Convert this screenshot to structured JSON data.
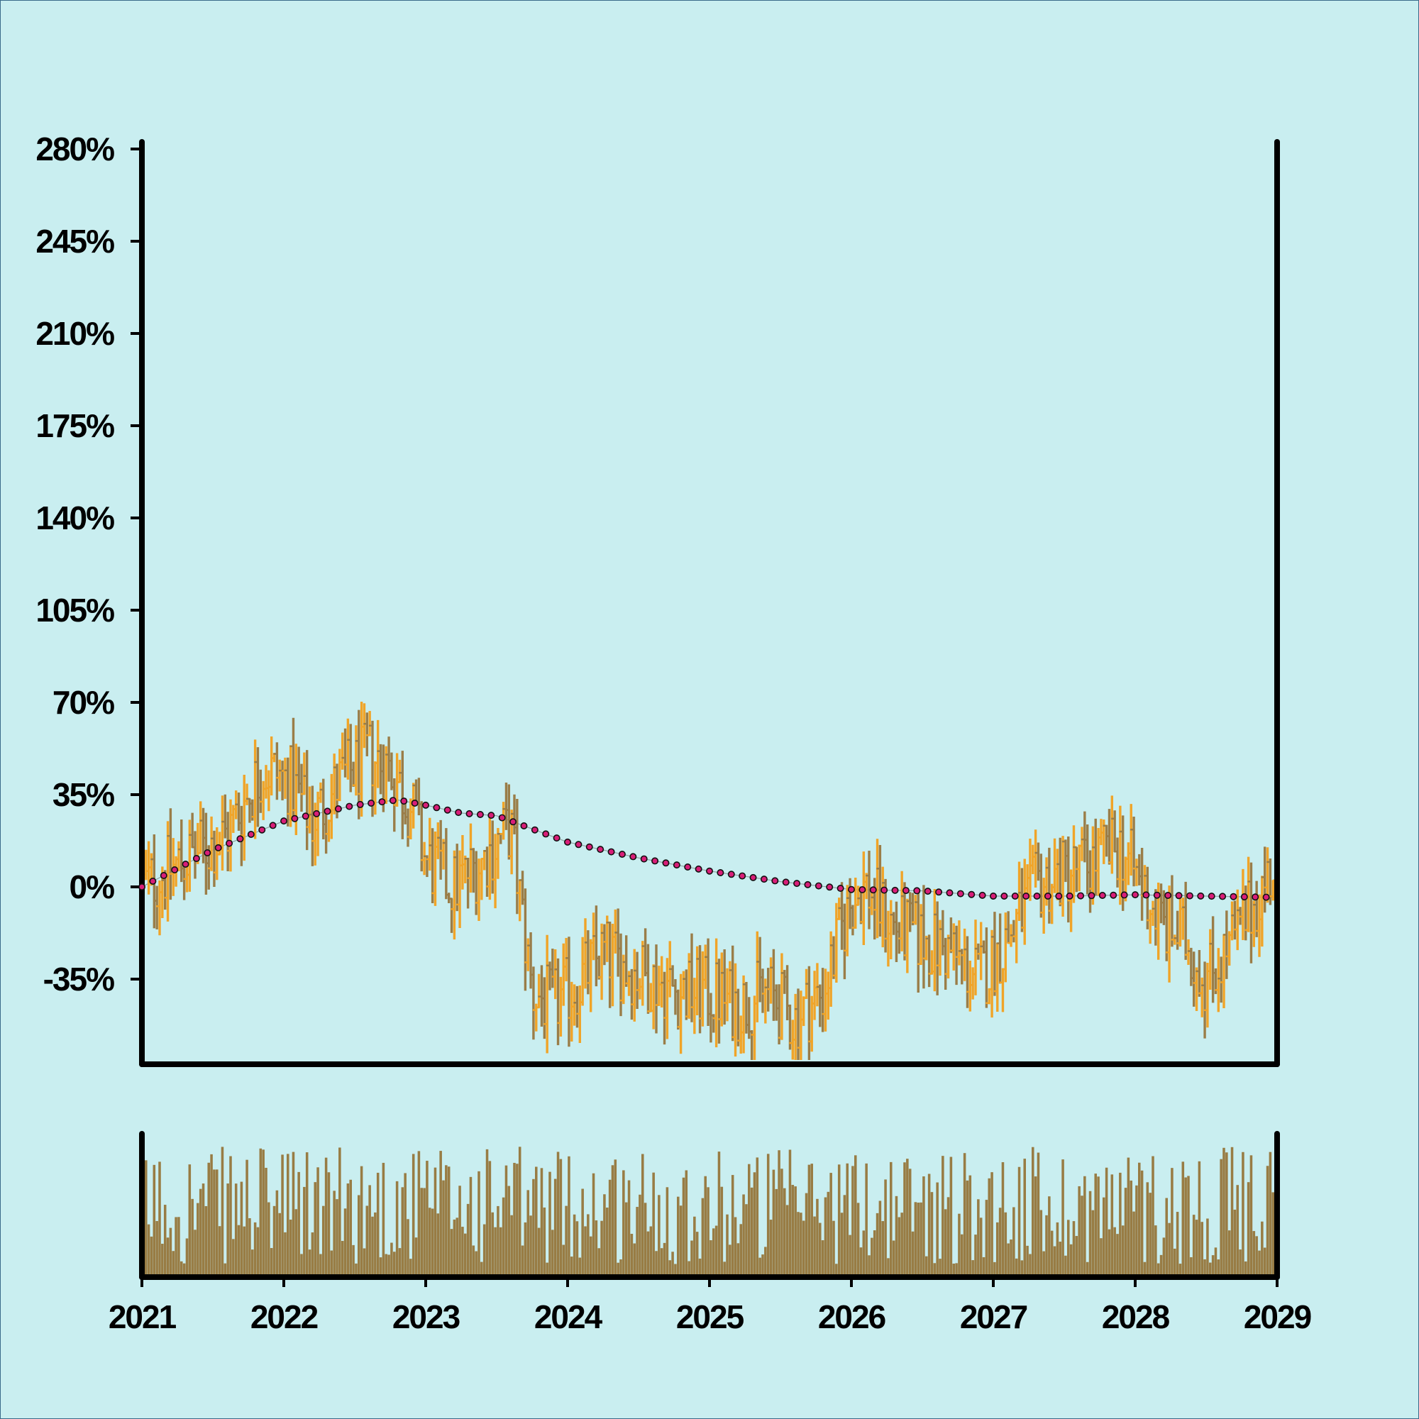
{
  "chart_data": {
    "type": "ohlc",
    "title": "",
    "xlabel": "",
    "ylabel": "",
    "y_unit": "%",
    "ylim": [
      -70,
      280
    ],
    "y_ticks": [
      -35,
      0,
      35,
      70,
      105,
      140,
      175,
      210,
      245,
      280
    ],
    "y_tick_labels": [
      "-35%",
      "0%",
      "35%",
      "70%",
      "105%",
      "140%",
      "175%",
      "210%",
      "245%",
      "280%"
    ],
    "xlim": [
      2021,
      2029
    ],
    "x_ticks": [
      2021,
      2022,
      2023,
      2024,
      2025,
      2026,
      2027,
      2028,
      2029
    ],
    "x_tick_labels": [
      "2021",
      "2022",
      "2023",
      "2024",
      "2025",
      "2026",
      "2027",
      "2028",
      "2029"
    ],
    "grid": false,
    "colors": {
      "background": "#c9eef0",
      "up": "#f0a428",
      "down": "#9a7d48",
      "trend_line": "#d81e78",
      "volume": "#987c44",
      "axes": "#000000"
    },
    "close_anchors": {
      "x": [
        2021.0,
        2021.3,
        2021.6,
        2021.85,
        2022.05,
        2022.2,
        2022.4,
        2022.6,
        2022.75,
        2022.9,
        2023.0,
        2023.2,
        2023.4,
        2023.55,
        2023.6,
        2023.75,
        2023.9,
        2024.1,
        2024.25,
        2024.4,
        2024.6,
        2024.8,
        2025.0,
        2025.2,
        2025.4,
        2025.6,
        2025.8,
        2026.0,
        2026.1,
        2026.3,
        2026.5,
        2026.7,
        2026.9,
        2027.1,
        2027.3,
        2027.5,
        2027.7,
        2027.9,
        2028.0,
        2028.2,
        2028.35,
        2028.5,
        2028.7,
        2028.9,
        2029.0
      ],
      "y": [
        0,
        10,
        20,
        45,
        40,
        25,
        40,
        50,
        45,
        30,
        10,
        0,
        10,
        20,
        22,
        -40,
        -45,
        -35,
        -25,
        -30,
        -35,
        -40,
        -40,
        -45,
        -40,
        -50,
        -40,
        -5,
        0,
        -15,
        -20,
        -25,
        -35,
        -20,
        0,
        5,
        10,
        15,
        5,
        -15,
        -20,
        -35,
        -20,
        0,
        10
      ]
    },
    "trend_line": {
      "x": [
        2021.0,
        2021.5,
        2022.0,
        2022.5,
        2022.8,
        2023.0,
        2023.25,
        2023.5,
        2024.0,
        2024.5,
        2025.0,
        2025.5,
        2026.0,
        2026.5,
        2027.0,
        2027.5,
        2028.0,
        2028.5,
        2029.0
      ],
      "y": [
        0,
        14,
        25,
        31,
        33,
        31,
        28,
        27,
        17,
        11,
        6,
        2,
        -1,
        -1.5,
        -3.5,
        -3.5,
        -3,
        -3.5,
        -4
      ]
    },
    "volume_note": "unlabeled volume bars below the price panel"
  }
}
